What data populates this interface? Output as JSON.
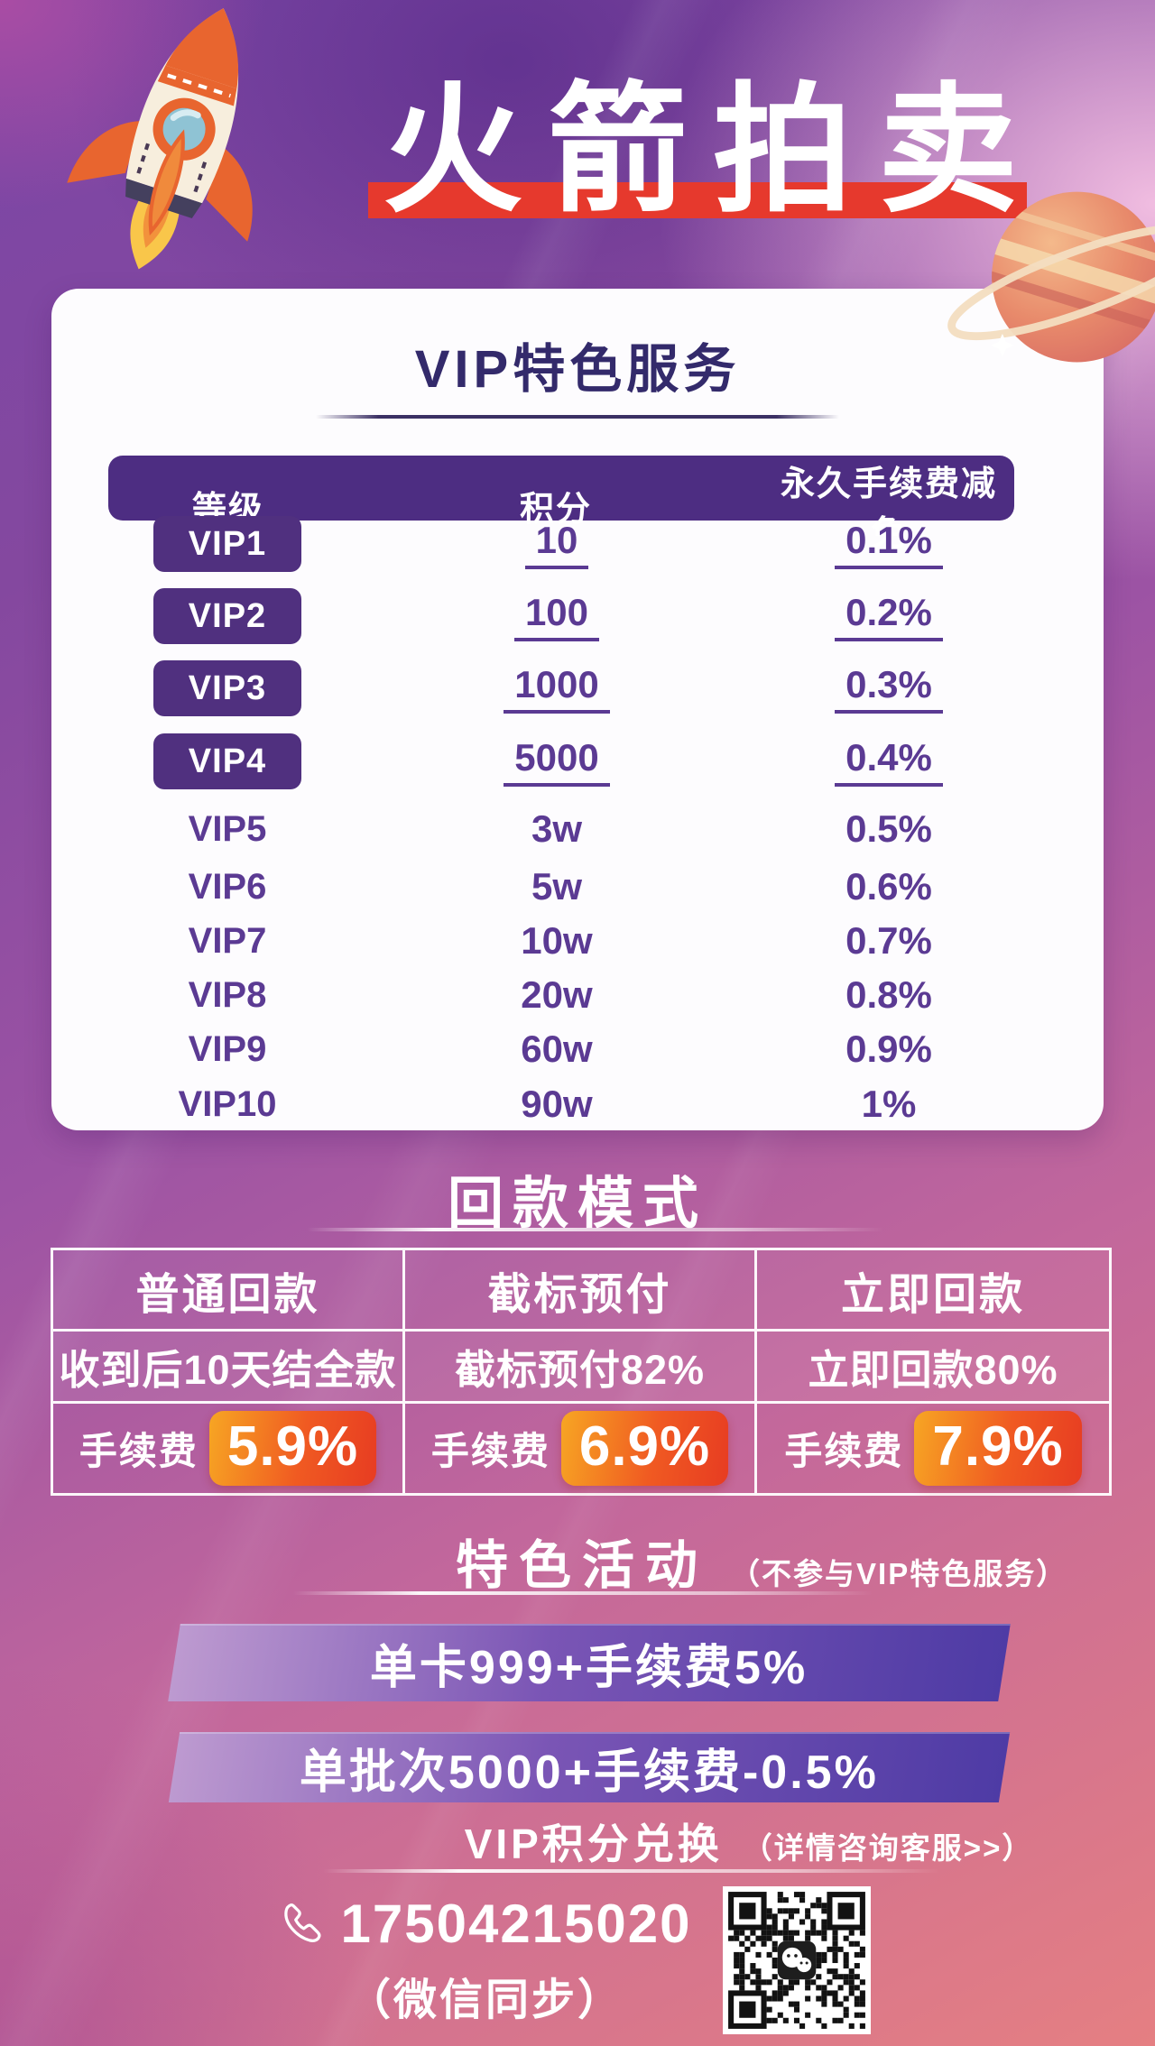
{
  "header": {
    "title": "火箭拍卖"
  },
  "vip": {
    "card_title": "VIP特色服务",
    "columns": [
      "等级",
      "积分",
      "永久手续费减免"
    ],
    "rows": [
      {
        "level": "VIP1",
        "points": "10",
        "discount": "0.1%"
      },
      {
        "level": "VIP2",
        "points": "100",
        "discount": "0.2%"
      },
      {
        "level": "VIP3",
        "points": "1000",
        "discount": "0.3%"
      },
      {
        "level": "VIP4",
        "points": "5000",
        "discount": "0.4%"
      },
      {
        "level": "VIP5",
        "points": "3w",
        "discount": "0.5%"
      },
      {
        "level": "VIP6",
        "points": "5w",
        "discount": "0.6%"
      },
      {
        "level": "VIP7",
        "points": "10w",
        "discount": "0.7%"
      },
      {
        "level": "VIP8",
        "points": "20w",
        "discount": "0.8%"
      },
      {
        "level": "VIP9",
        "points": "60w",
        "discount": "0.9%"
      },
      {
        "level": "VIP10",
        "points": "90w",
        "discount": "1%"
      }
    ]
  },
  "payback": {
    "title": "回款模式",
    "columns": [
      "普通回款",
      "截标预付",
      "立即回款"
    ],
    "details": [
      "收到后10天结全款",
      "截标预付82%",
      "立即回款80%"
    ],
    "fee_label": "手续费",
    "fees": [
      "5.9%",
      "6.9%",
      "7.9%"
    ]
  },
  "activities": {
    "title": "特色活动",
    "note": "（不参与VIP特色服务）",
    "banners": [
      "单卡999+手续费5%",
      "单批次5000+手续费-0.5%"
    ],
    "exchange": "VIP积分兑换",
    "exchange_note": "（详情咨询客服>>）"
  },
  "footer": {
    "phone": "17504215020",
    "phone_note": "（微信同步）"
  },
  "icons": [
    "rocket-illustration",
    "planet-illustration",
    "phone-icon",
    "qr-code",
    "wechat-logo"
  ],
  "colors": {
    "accent_red": "#e6392d",
    "deep_purple": "#4d2d82",
    "badge_purple": "#50307f",
    "value_purple": "#5b3a93",
    "fee_orange_start": "#f7a623",
    "fee_orange_end": "#e73c22",
    "bg_top_purple": "#7b46a6",
    "bg_bottom_coral": "#e07b7d"
  }
}
